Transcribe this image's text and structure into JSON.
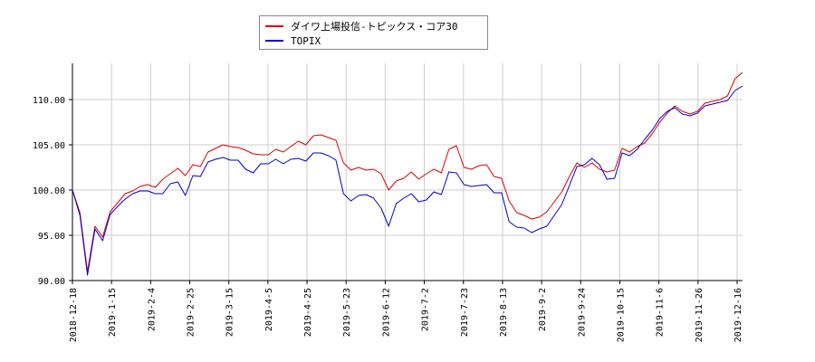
{
  "chart_data": {
    "type": "line",
    "legend_position": "top-center",
    "grid": true,
    "ylim": [
      90,
      114
    ],
    "y_ticks": [
      "90.00",
      "95.00",
      "100.00",
      "105.00",
      "110.00"
    ],
    "x_tick_labels": [
      "2018-12-18",
      "2019-1-15",
      "2019-2-4",
      "2019-2-25",
      "2019-3-15",
      "2019-4-5",
      "2019-4-25",
      "2019-5-23",
      "2019-6-12",
      "2019-7-2",
      "2019-7-23",
      "2019-8-13",
      "2019-9-2",
      "2019-9-24",
      "2019-10-15",
      "2019-11-6",
      "2019-11-26",
      "2019-12-16"
    ],
    "series": [
      {
        "name": "ダイワ上場投信-トピックス・コア30",
        "color": "#dd0000",
        "values": [
          100,
          97.5,
          91,
          96,
          94.8,
          97.6,
          98.6,
          99.6,
          99.9,
          100.4,
          100.6,
          100.3,
          101.2,
          101.8,
          102.4,
          101.6,
          102.8,
          102.6,
          104.2,
          104.6,
          105.0,
          104.8,
          104.7,
          104.4,
          104.0,
          103.9,
          103.9,
          104.5,
          104.2,
          104.8,
          105.4,
          105.0,
          106.0,
          106.1,
          105.8,
          105.5,
          103.0,
          102.2,
          102.5,
          102.2,
          102.3,
          101.8,
          100.0,
          101.0,
          101.3,
          102.0,
          101.2,
          101.8,
          102.3,
          101.9,
          104.5,
          104.9,
          102.5,
          102.3,
          102.7,
          102.8,
          101.5,
          101.3,
          98.8,
          97.5,
          97.2,
          96.8,
          97.0,
          97.6,
          98.7,
          99.8,
          101.5,
          103.0,
          102.5,
          103.0,
          102.3,
          102.0,
          102.2,
          104.6,
          104.2,
          104.8,
          105.2,
          106.2,
          107.5,
          108.5,
          109.3,
          108.7,
          108.4,
          108.7,
          109.6,
          109.8,
          110.0,
          110.4,
          112.3,
          113.0
        ]
      },
      {
        "name": "TOPIX",
        "color": "#0000cc",
        "values": [
          100,
          97.2,
          90.6,
          95.7,
          94.4,
          97.3,
          98.2,
          99.0,
          99.6,
          99.9,
          99.9,
          99.6,
          99.6,
          100.7,
          100.9,
          99.4,
          101.6,
          101.5,
          103.1,
          103.4,
          103.6,
          103.3,
          103.3,
          102.3,
          101.9,
          102.9,
          102.9,
          103.4,
          102.9,
          103.4,
          103.5,
          103.2,
          104.1,
          104.1,
          103.8,
          103.3,
          99.6,
          98.8,
          99.4,
          99.5,
          99.1,
          98.0,
          96.0,
          98.5,
          99.1,
          99.6,
          98.7,
          98.9,
          99.8,
          99.5,
          102.0,
          101.9,
          100.6,
          100.4,
          100.5,
          100.6,
          99.7,
          99.7,
          96.5,
          95.9,
          95.8,
          95.3,
          95.7,
          96.0,
          97.2,
          98.4,
          100.5,
          102.6,
          102.8,
          103.5,
          102.8,
          101.2,
          101.3,
          104.1,
          103.8,
          104.5,
          105.6,
          106.6,
          107.9,
          108.7,
          109.1,
          108.4,
          108.2,
          108.5,
          109.3,
          109.5,
          109.7,
          109.9,
          111.0,
          111.5
        ]
      }
    ]
  }
}
